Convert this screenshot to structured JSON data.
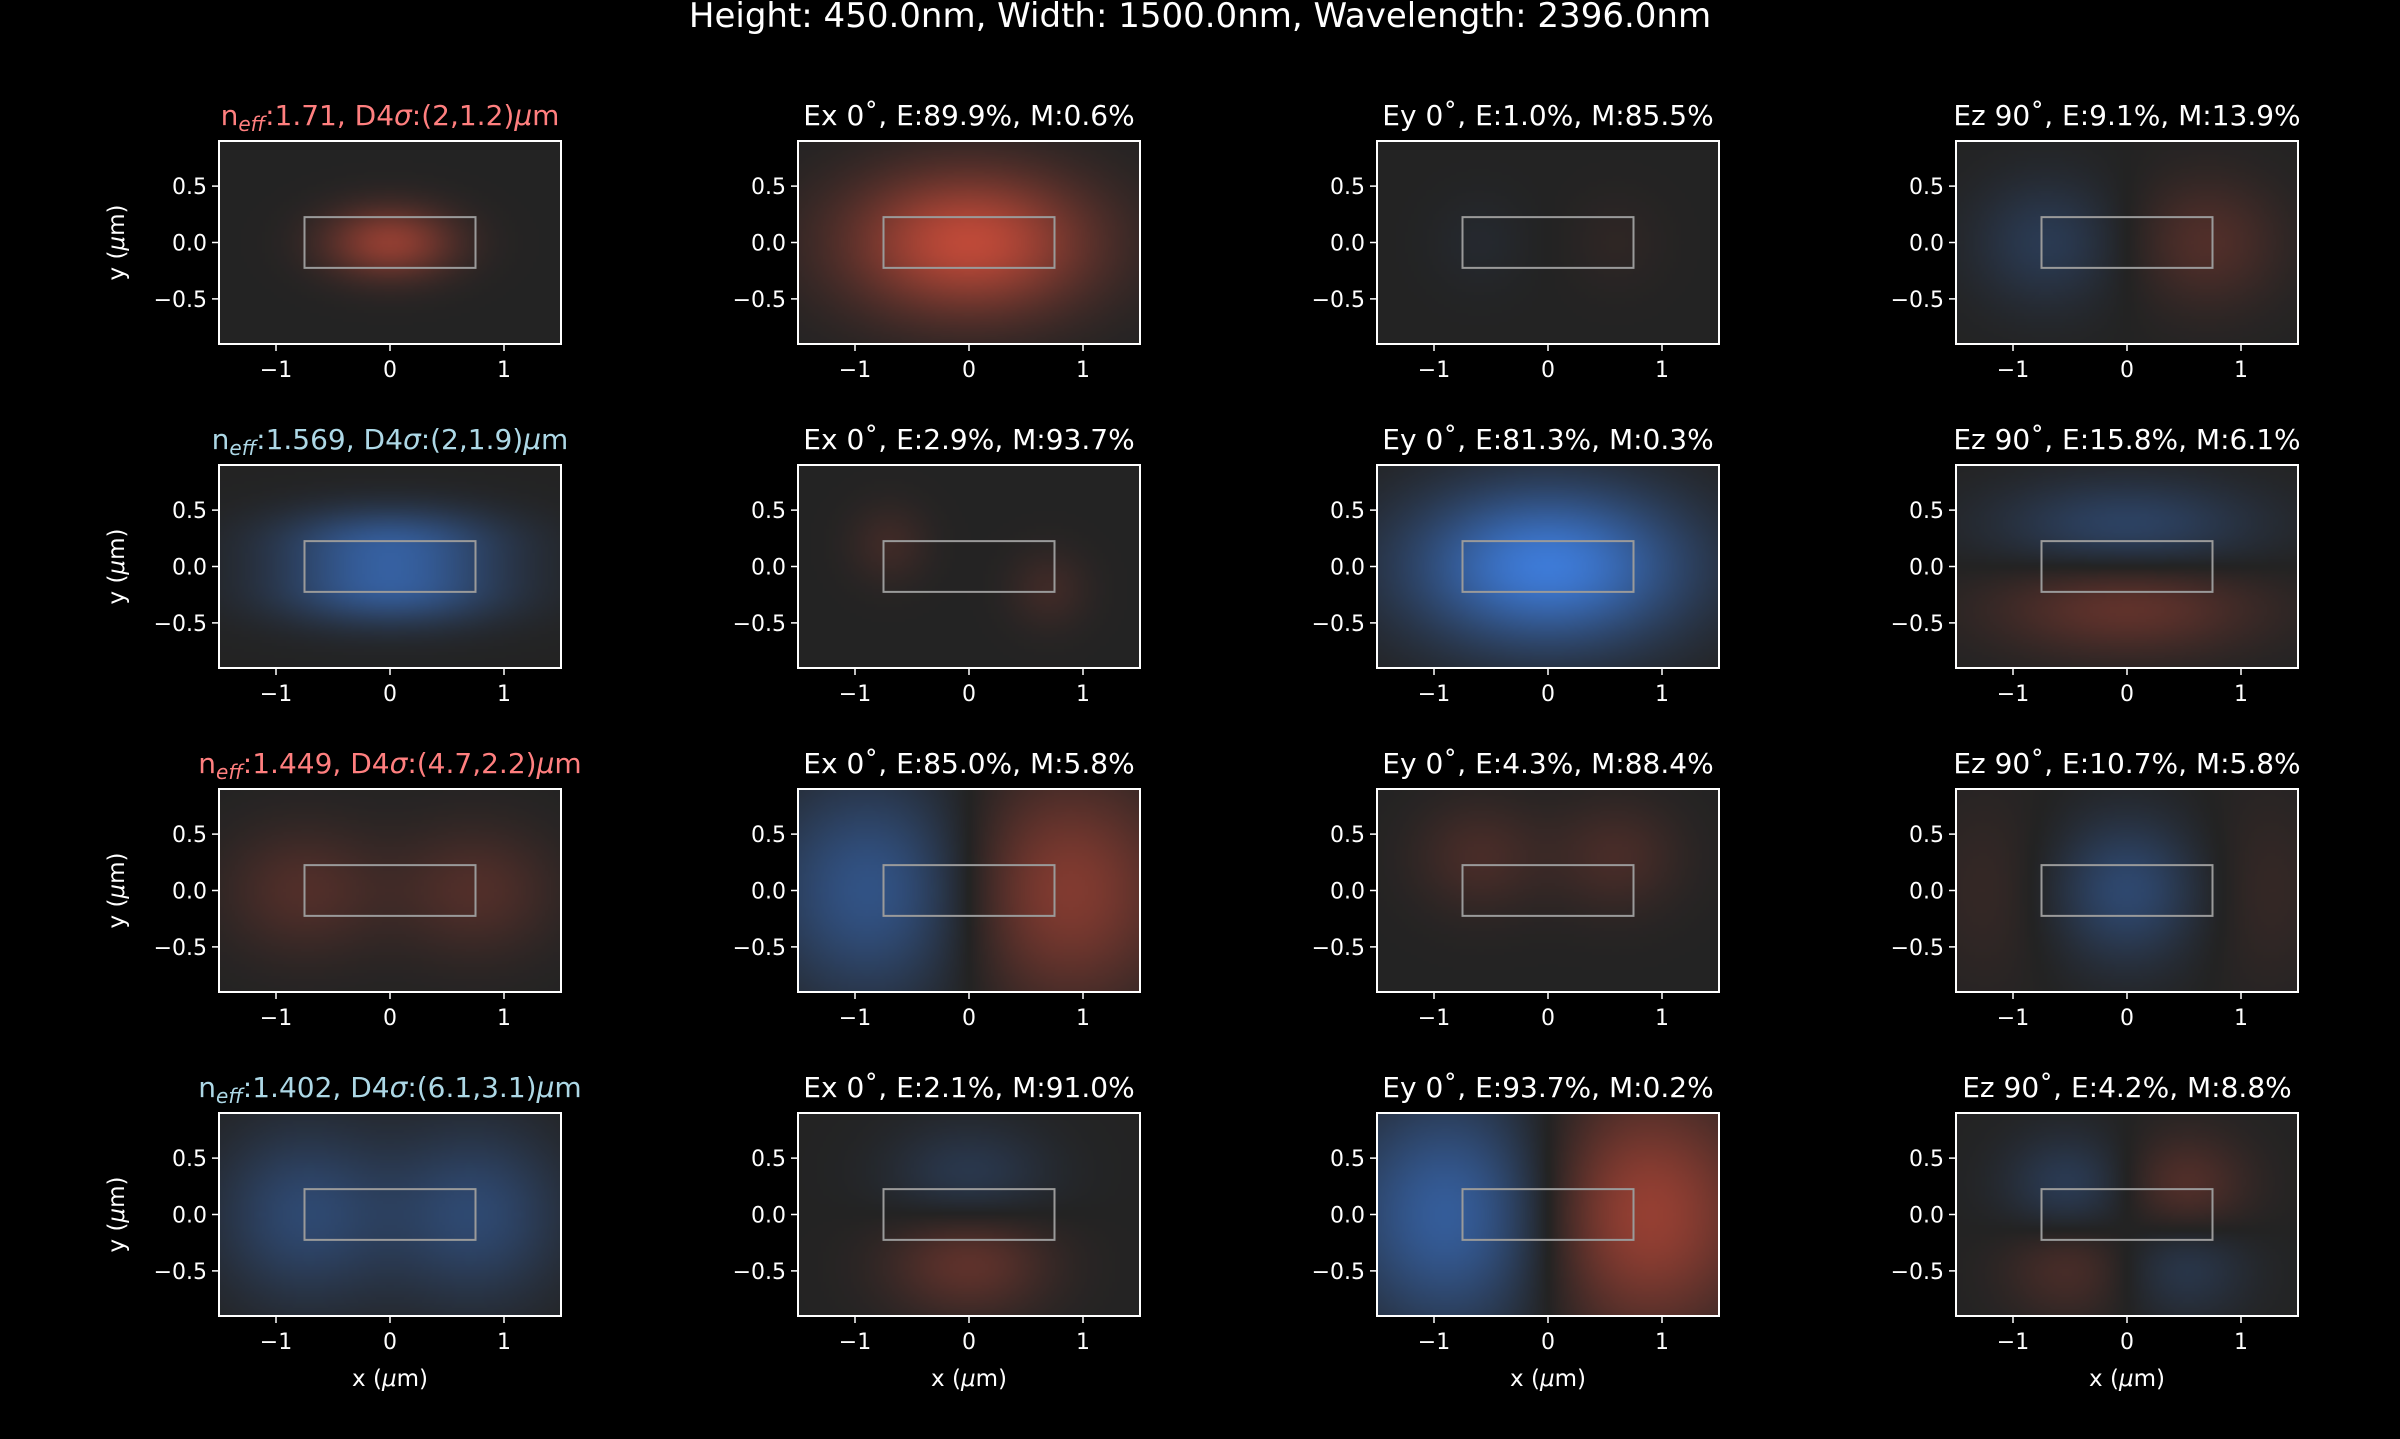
{
  "figure": {
    "title": "Height: 450.0nm, Width: 1500.0nm, Wavelength: 2396.0nm",
    "background": "#000000",
    "plot_background": "#232323",
    "core_outline_color": "#9a9a9a",
    "positive_color": "#d9503c",
    "negative_color": "#3f7fe0",
    "neff_color_red": "#ff7f7f",
    "neff_color_blue": "#add8e6"
  },
  "axes": {
    "xlabel_left": "x (",
    "xlabel_mu": "μ",
    "xlabel_right": "m)",
    "ylabel_left": "y (",
    "ylabel_mu": "μ",
    "ylabel_right": "m)",
    "x_ticks": [
      "−1",
      "0",
      "1"
    ],
    "y_ticks": [
      "0.5",
      "0.0",
      "−0.5"
    ]
  },
  "chart_data": {
    "type": "heatmap",
    "description_scope": "4 modes x 4 field components, dark-theme mode solver field plots",
    "xlim": [
      -1.5,
      1.5
    ],
    "ylim": [
      -0.9,
      0.9
    ],
    "x_tick_values": [
      -1,
      0,
      1
    ],
    "y_tick_values": [
      0.5,
      0.0,
      -0.5
    ],
    "waveguide_core": {
      "x": [
        -0.75,
        0.75
      ],
      "y": [
        -0.225,
        0.225
      ]
    },
    "rows": [
      {
        "neff_prefix": "n",
        "neff_sub": "eff",
        "neff_text": ":1.71, D4",
        "sigma": "σ",
        "neff_tail": ":(2,1.2)",
        "mu": "μ",
        "unit": "m",
        "neff_color": "red",
        "panels": [
          {
            "title": "",
            "pattern": [
              [
                "sym_x",
                0.45,
                0.9,
                0.6
              ]
            ],
            "sign": 1
          },
          {
            "title": "Ex 0˚, E:89.9%, M:0.6%",
            "pattern": [
              [
                "gauss",
                0,
                0,
                0.75,
                0.45,
                0.85
              ]
            ],
            "sign": 1
          },
          {
            "title": "Ey 0˚, E:1.0%, M:85.5%",
            "pattern": [
              [
                "gauss",
                -0.6,
                0.0,
                0.3,
                0.3,
                -0.06
              ],
              [
                "gauss",
                0.6,
                0.0,
                0.3,
                0.3,
                0.06
              ]
            ],
            "sign": 1
          },
          {
            "title": "Ez 90˚, E:9.1%, M:13.9%",
            "pattern": [
              [
                "gauss",
                -0.7,
                0,
                0.45,
                0.4,
                -0.25
              ],
              [
                "gauss",
                0.7,
                0,
                0.45,
                0.4,
                0.25
              ]
            ],
            "sign": 1
          }
        ]
      },
      {
        "neff_prefix": "n",
        "neff_sub": "eff",
        "neff_text": ":1.569, D4",
        "sigma": "σ",
        "neff_tail": ":(2,1.9)",
        "mu": "μ",
        "unit": "m",
        "neff_color": "blue",
        "panels": [
          {
            "title": "",
            "pattern": [
              [
                "gauss",
                0,
                0.22,
                0.7,
                0.22,
                -0.55
              ],
              [
                "gauss",
                0,
                -0.22,
                0.7,
                0.22,
                -0.55
              ]
            ],
            "sign": 1
          },
          {
            "title": "Ex 0˚, E:2.9%, M:93.7%",
            "pattern": [
              [
                "gauss",
                -0.7,
                0.2,
                0.25,
                0.25,
                0.15
              ],
              [
                "gauss",
                0.7,
                -0.2,
                0.25,
                0.25,
                0.15
              ]
            ],
            "sign": 1
          },
          {
            "title": "Ey 0˚, E:81.3%, M:0.3%",
            "pattern": [
              [
                "gauss",
                0,
                0,
                0.85,
                0.5,
                -0.95
              ]
            ],
            "sign": 1
          },
          {
            "title": "Ez 90˚, E:15.8%, M:6.1%",
            "pattern": [
              [
                "gauss",
                0,
                0.35,
                0.8,
                0.3,
                -0.35
              ],
              [
                "gauss",
                0,
                -0.35,
                0.8,
                0.3,
                0.35
              ]
            ],
            "sign": 1
          }
        ]
      },
      {
        "neff_prefix": "n",
        "neff_sub": "eff",
        "neff_text": ":1.449, D4",
        "sigma": "σ",
        "neff_tail": ":(4.7,2.2)",
        "mu": "μ",
        "unit": "m",
        "neff_color": "red",
        "panels": [
          {
            "title": "",
            "pattern": [
              [
                "gauss",
                -0.75,
                0,
                0.5,
                0.4,
                0.25
              ],
              [
                "gauss",
                0.75,
                0,
                0.5,
                0.4,
                0.25
              ]
            ],
            "sign": 1
          },
          {
            "title": "Ex 0˚, E:85.0%, M:5.8%",
            "pattern": [
              [
                "gauss",
                -0.8,
                0,
                0.7,
                0.7,
                -0.55
              ],
              [
                "gauss",
                0.8,
                0,
                0.7,
                0.7,
                0.55
              ]
            ],
            "sign": 1
          },
          {
            "title": "Ey 0˚, E:4.3%, M:88.4%",
            "pattern": [
              [
                "gauss",
                -0.6,
                0.3,
                0.4,
                0.35,
                0.2
              ],
              [
                "gauss",
                0.6,
                0.3,
                0.4,
                0.35,
                0.2
              ]
            ],
            "sign": 1
          },
          {
            "title": "Ez 90˚, E:10.7%, M:5.8%",
            "pattern": [
              [
                "gauss",
                0,
                0,
                0.45,
                0.45,
                -0.4
              ],
              [
                "gauss",
                -1.2,
                0,
                0.4,
                0.6,
                0.1
              ],
              [
                "gauss",
                1.2,
                0,
                0.4,
                0.6,
                0.1
              ]
            ],
            "sign": 1
          }
        ]
      },
      {
        "neff_prefix": "n",
        "neff_sub": "eff",
        "neff_text": ":1.402, D4",
        "sigma": "σ",
        "neff_tail": ":(6.1,3.1)",
        "mu": "μ",
        "unit": "m",
        "neff_color": "blue",
        "panels": [
          {
            "title": "",
            "pattern": [
              [
                "gauss",
                -0.75,
                0,
                0.55,
                0.55,
                -0.4
              ],
              [
                "gauss",
                0.75,
                0,
                0.55,
                0.55,
                -0.4
              ]
            ],
            "sign": 1
          },
          {
            "title": "Ex 0˚, E:2.1%, M:91.0%",
            "pattern": [
              [
                "gauss",
                0,
                0.3,
                0.5,
                0.35,
                -0.25
              ],
              [
                "gauss",
                0,
                -0.4,
                0.5,
                0.35,
                0.35
              ]
            ],
            "sign": 1
          },
          {
            "title": "Ey 0˚, E:93.7%, M:0.2%",
            "pattern": [
              [
                "gauss",
                -0.75,
                0,
                0.75,
                0.75,
                -0.7
              ],
              [
                "gauss",
                0.75,
                0,
                0.75,
                0.75,
                0.7
              ]
            ],
            "sign": 1
          },
          {
            "title": "Ez 90˚, E:4.2%, M:8.8%",
            "pattern": [
              [
                "gauss",
                -0.5,
                0.2,
                0.4,
                0.35,
                -0.3
              ],
              [
                "gauss",
                0.5,
                0.2,
                0.4,
                0.35,
                0.3
              ],
              [
                "gauss",
                -0.5,
                -0.4,
                0.4,
                0.35,
                0.25
              ],
              [
                "gauss",
                0.5,
                -0.4,
                0.4,
                0.35,
                -0.25
              ]
            ],
            "sign": 1
          }
        ]
      }
    ]
  }
}
